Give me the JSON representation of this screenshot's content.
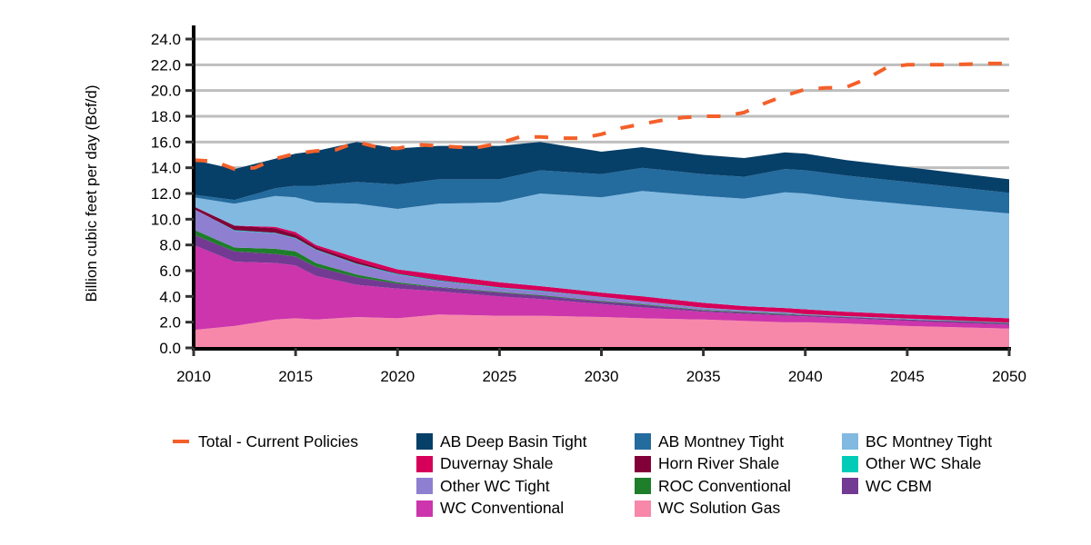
{
  "chart_data": {
    "type": "area",
    "stacked": true,
    "title": "",
    "xlabel": "",
    "ylabel": "Billion cubic feet per day (Bcf/d)",
    "xlim": [
      2010,
      2050
    ],
    "ylim": [
      0,
      24
    ],
    "x_ticks": [
      "2010",
      "2015",
      "2020",
      "2025",
      "2030",
      "2035",
      "2040",
      "2045",
      "2050"
    ],
    "y_ticks": [
      "0.0",
      "2.0",
      "4.0",
      "6.0",
      "8.0",
      "10.0",
      "12.0",
      "14.0",
      "16.0",
      "18.0",
      "20.0",
      "22.0",
      "24.0"
    ],
    "grid": "horizontal",
    "legend_position": "bottom",
    "x": [
      2010,
      2012,
      2014,
      2015,
      2016,
      2018,
      2020,
      2022,
      2025,
      2027,
      2030,
      2032,
      2035,
      2037,
      2039,
      2040,
      2042,
      2045,
      2050
    ],
    "series": [
      {
        "name": "WC Solution Gas",
        "color": "#F788AA",
        "values": [
          1.4,
          1.7,
          2.2,
          2.3,
          2.2,
          2.4,
          2.3,
          2.6,
          2.5,
          2.5,
          2.4,
          2.3,
          2.2,
          2.1,
          2.0,
          2.0,
          1.9,
          1.7,
          1.5
        ]
      },
      {
        "name": "WC Conventional",
        "color": "#CC35AC",
        "values": [
          6.6,
          5.0,
          4.4,
          4.1,
          3.4,
          2.5,
          2.3,
          1.8,
          1.5,
          1.3,
          1.0,
          0.85,
          0.6,
          0.55,
          0.5,
          0.45,
          0.4,
          0.4,
          0.3
        ]
      },
      {
        "name": "WC CBM",
        "color": "#733A93",
        "values": [
          0.8,
          0.8,
          0.7,
          0.7,
          0.7,
          0.6,
          0.4,
          0.3,
          0.3,
          0.25,
          0.2,
          0.2,
          0.1,
          0.1,
          0.1,
          0.1,
          0.1,
          0.1,
          0.1
        ]
      },
      {
        "name": "ROC Conventional",
        "color": "#1E7E2A",
        "values": [
          0.4,
          0.3,
          0.4,
          0.4,
          0.3,
          0.2,
          0.1,
          0.05,
          0.05,
          0.05,
          0.05,
          0.05,
          0.05,
          0.05,
          0.05,
          0.02,
          0.02,
          0.02,
          0.02
        ]
      },
      {
        "name": "Other WC Tight",
        "color": "#8E7FD1",
        "values": [
          1.6,
          1.3,
          1.2,
          1.0,
          1.0,
          0.8,
          0.6,
          0.45,
          0.3,
          0.3,
          0.3,
          0.2,
          0.15,
          0.1,
          0.1,
          0.03,
          0.03,
          0.03,
          0.03
        ]
      },
      {
        "name": "Other WC Shale",
        "color": "#00CCB8",
        "values": [
          0.0,
          0.05,
          0.05,
          0.05,
          0.05,
          0.05,
          0.05,
          0.05,
          0.05,
          0.05,
          0.02,
          0.02,
          0.02,
          0.02,
          0.02,
          0.02,
          0.02,
          0.02,
          0.02
        ]
      },
      {
        "name": "Horn River Shale",
        "color": "#820038",
        "values": [
          0.2,
          0.35,
          0.35,
          0.25,
          0.2,
          0.2,
          0.05,
          0.05,
          0.0,
          0.0,
          0.0,
          0.0,
          0.0,
          0.0,
          0.0,
          0.0,
          0.0,
          0.0,
          0.0
        ]
      },
      {
        "name": "Duvernay Shale",
        "color": "#D6005A",
        "values": [
          0.0,
          0.0,
          0.1,
          0.2,
          0.15,
          0.25,
          0.3,
          0.4,
          0.4,
          0.35,
          0.33,
          0.38,
          0.38,
          0.33,
          0.33,
          0.38,
          0.33,
          0.33,
          0.33
        ]
      },
      {
        "name": "BC Montney Tight",
        "color": "#82B9E1",
        "values": [
          0.7,
          1.7,
          2.4,
          2.7,
          3.3,
          4.2,
          4.7,
          5.5,
          6.2,
          7.2,
          7.4,
          8.2,
          8.3,
          8.35,
          9.0,
          9.0,
          8.8,
          8.55,
          8.15
        ]
      },
      {
        "name": "AB Montney Tight",
        "color": "#246B9E",
        "values": [
          0.2,
          0.3,
          0.6,
          0.9,
          1.3,
          1.7,
          1.9,
          1.9,
          1.8,
          1.8,
          1.8,
          1.8,
          1.7,
          1.7,
          1.8,
          1.8,
          1.8,
          1.75,
          1.6
        ]
      },
      {
        "name": "AB Deep Basin Tight",
        "color": "#063F68",
        "values": [
          2.7,
          2.4,
          2.3,
          2.5,
          2.7,
          3.1,
          2.8,
          2.6,
          2.6,
          2.2,
          1.75,
          1.6,
          1.5,
          1.45,
          1.3,
          1.3,
          1.2,
          1.15,
          1.05
        ]
      }
    ],
    "line_series": {
      "name": "Total - Current Policies",
      "color": "#F4602A",
      "style": "dashed",
      "x": [
        2010,
        2011,
        2012,
        2013,
        2014,
        2015,
        2016,
        2017,
        2018,
        2019,
        2020,
        2021,
        2022,
        2023,
        2024,
        2025,
        2026,
        2027,
        2028,
        2029,
        2030,
        2031,
        2032,
        2033,
        2034,
        2035,
        2036,
        2037,
        2038,
        2039,
        2040,
        2041,
        2042,
        2043,
        2044,
        2045,
        2046,
        2047,
        2048,
        2049,
        2050
      ],
      "values": [
        14.6,
        14.5,
        13.9,
        14.0,
        14.7,
        15.1,
        15.3,
        15.4,
        16.0,
        15.6,
        15.5,
        15.8,
        15.7,
        15.6,
        15.6,
        15.9,
        16.4,
        16.4,
        16.3,
        16.3,
        16.6,
        17.1,
        17.4,
        17.7,
        17.9,
        18.0,
        18.0,
        18.3,
        19.0,
        19.6,
        20.1,
        20.2,
        20.25,
        20.9,
        21.8,
        22.0,
        22.0,
        22.0,
        22.05,
        22.1,
        22.1
      ]
    },
    "legend_entries": [
      {
        "label": "Total - Current Policies",
        "kind": "line",
        "color": "#F4602A"
      },
      {
        "label": "AB Deep Basin Tight",
        "kind": "swatch",
        "color": "#063F68"
      },
      {
        "label": "AB Montney Tight",
        "kind": "swatch",
        "color": "#246B9E"
      },
      {
        "label": "BC Montney Tight",
        "kind": "swatch",
        "color": "#82B9E1"
      },
      {
        "label": "Duvernay Shale",
        "kind": "swatch",
        "color": "#D6005A"
      },
      {
        "label": "Horn River Shale",
        "kind": "swatch",
        "color": "#820038"
      },
      {
        "label": "Other WC Shale",
        "kind": "swatch",
        "color": "#00CCB8"
      },
      {
        "label": "Other WC Tight",
        "kind": "swatch",
        "color": "#8E7FD1"
      },
      {
        "label": "ROC Conventional",
        "kind": "swatch",
        "color": "#1E7E2A"
      },
      {
        "label": "WC CBM",
        "kind": "swatch",
        "color": "#733A93"
      },
      {
        "label": "WC Conventional",
        "kind": "swatch",
        "color": "#CC35AC"
      },
      {
        "label": "WC Solution Gas",
        "kind": "swatch",
        "color": "#F788AA"
      }
    ]
  }
}
